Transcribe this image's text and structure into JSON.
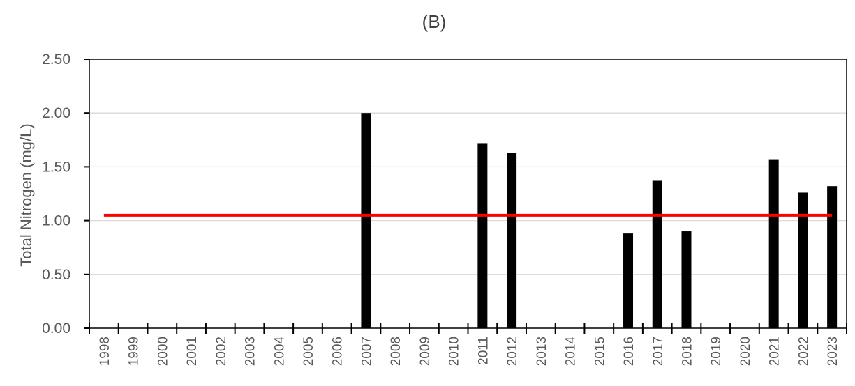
{
  "chart_data": {
    "type": "bar",
    "title": "(B)",
    "ylabel": "Total Nitrogen (mg/L)",
    "xlabel": "",
    "ylim": [
      0,
      2.5
    ],
    "yticks": [
      "0.00",
      "0.50",
      "1.00",
      "1.50",
      "2.00",
      "2.50"
    ],
    "grid": "horizontal",
    "categories": [
      "1998",
      "1999",
      "2000",
      "2001",
      "2002",
      "2003",
      "2004",
      "2005",
      "2006",
      "2007",
      "2008",
      "2009",
      "2010",
      "2011",
      "2012",
      "2013",
      "2014",
      "2015",
      "2016",
      "2017",
      "2018",
      "2019",
      "2020",
      "2021",
      "2022",
      "2023"
    ],
    "values": [
      null,
      null,
      null,
      null,
      null,
      null,
      null,
      null,
      null,
      2.0,
      null,
      null,
      null,
      1.72,
      1.63,
      null,
      null,
      null,
      0.88,
      1.37,
      0.9,
      null,
      null,
      1.57,
      1.26,
      1.32
    ],
    "reference_line": {
      "value": 1.05
    },
    "colors": {
      "bars": "#000000",
      "reference_line": "#ff0000",
      "grid": "#d9d9d9",
      "axis": "#000000"
    }
  }
}
